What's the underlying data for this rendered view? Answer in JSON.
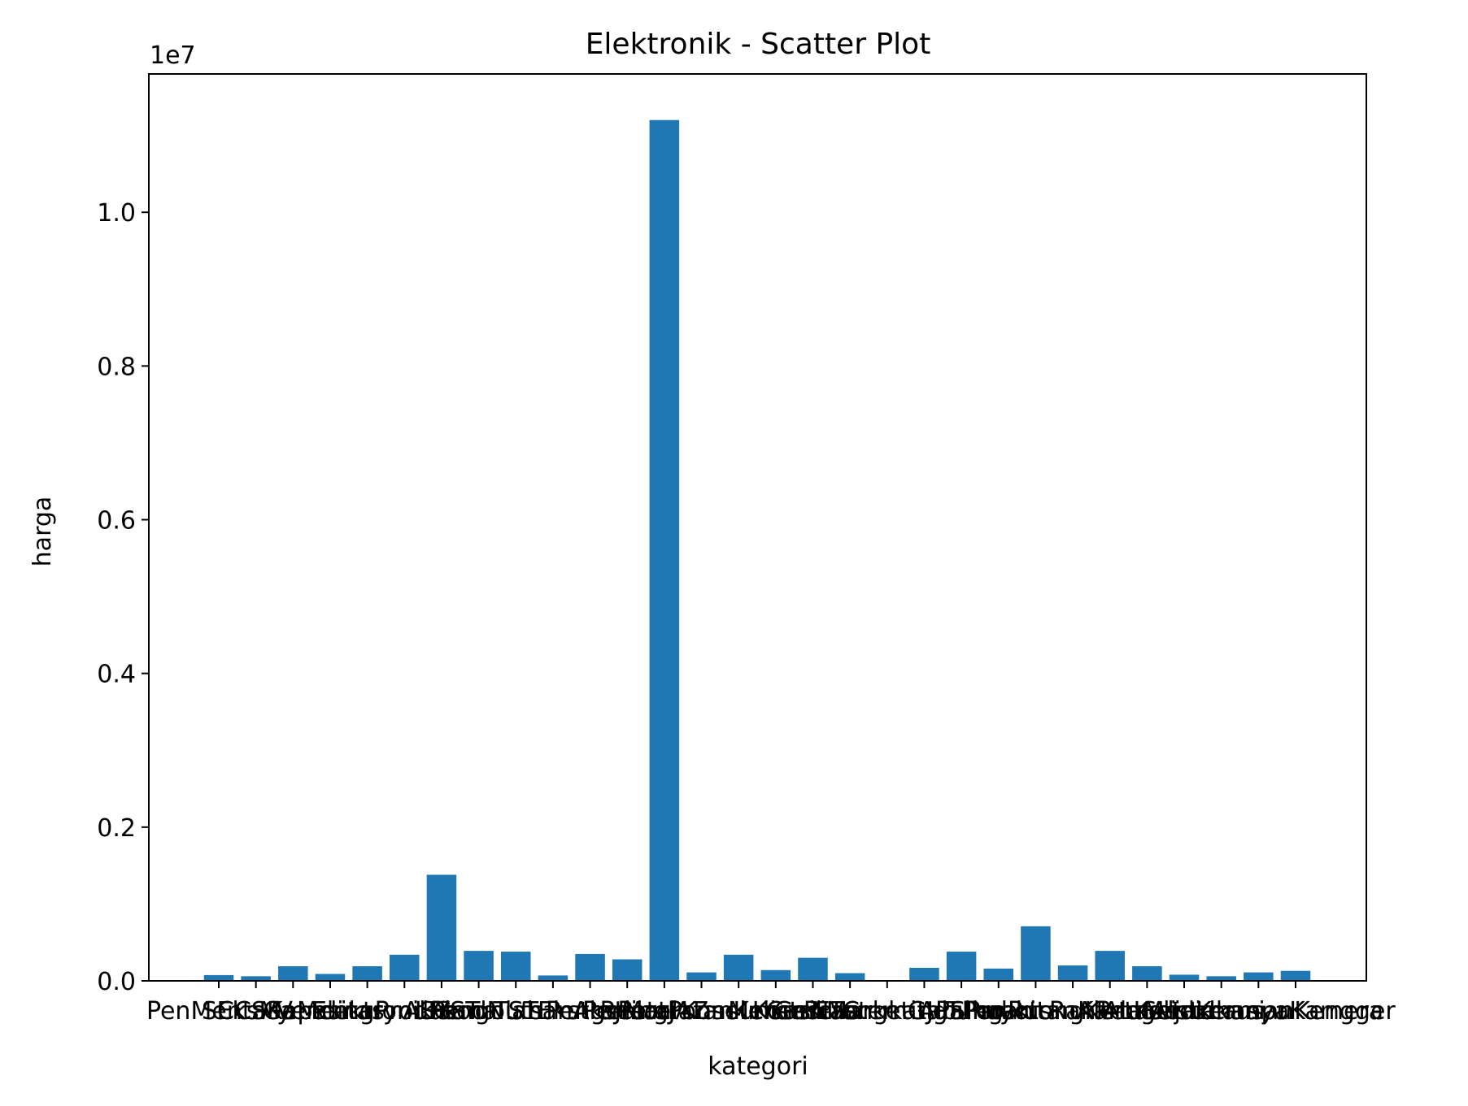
{
  "chart_data": {
    "type": "bar",
    "title": "Elektronik - Scatter Plot",
    "xlabel": "kategori",
    "ylabel": "harga",
    "y_scale_note": "1e7",
    "ylim": [
      0,
      11800000
    ],
    "yticks": [
      {
        "value": 0,
        "label": "0.0"
      },
      {
        "value": 2000000,
        "label": "0.2"
      },
      {
        "value": 4000000,
        "label": "0.4"
      },
      {
        "value": 6000000,
        "label": "0.6"
      },
      {
        "value": 8000000,
        "label": "0.8"
      },
      {
        "value": 10000000,
        "label": "1.0"
      }
    ],
    "grid": false,
    "color": "#1f77b4",
    "categories": [
      "",
      "",
      "",
      "",
      "",
      "",
      "",
      "",
      "",
      "",
      "",
      "",
      "",
      "",
      "",
      "",
      "",
      "",
      "",
      "",
      "",
      "",
      "",
      "",
      "",
      "",
      "",
      "",
      "",
      ""
    ],
    "values": [
      75000,
      60000,
      190000,
      90000,
      190000,
      340000,
      1380000,
      390000,
      380000,
      70000,
      350000,
      280000,
      11200000,
      110000,
      340000,
      140000,
      300000,
      100000,
      0,
      170000,
      380000,
      160000,
      710000,
      200000,
      390000,
      190000,
      80000,
      60000,
      110000,
      130000
    ],
    "x_tick_text_fragments": [
      "Pen",
      "Mentary",
      "Eks",
      "Ma",
      "SCCS",
      "Kapasitas",
      "Ge",
      "Mentary",
      "Vending",
      "Produk",
      "Elektronik",
      "Gana",
      "A",
      "SYST",
      "L",
      "FoodNuts",
      "TS",
      "T",
      "Pengolahan",
      "Aksesori",
      "Ekstra",
      "JM",
      "Pengering",
      "JAZ",
      "Peralat",
      "Ponsel",
      "Printer",
      "Konsumer",
      "Peralatan",
      "Kelistrikan",
      "Mer",
      "Gen",
      "Cas",
      "NTC",
      "Korasi",
      "Marketing",
      "Perangkat",
      "Jual",
      "Eastern",
      "Gabungan",
      "APS",
      "Pro",
      "Tukul",
      "Rus",
      "Perakitan",
      "Alt",
      "nyotong",
      "Kertas",
      "Ran",
      "Penge",
      "Kartu",
      "Media",
      "Ala",
      "Setrumasi",
      "Aljaz",
      "Lampu",
      "Kelistrikanya",
      "Kamera",
      "Kerusan",
      "Kengger",
      "Pelindung",
      "Gas",
      "Furnisasi",
      "Pelindungg",
      "Cuci",
      "Tinggi",
      "TV",
      "Kelfunasi",
      "A",
      "Pengaman",
      "Pedanyang",
      "Kesulurans",
      "Kesehatan",
      "Kelap",
      "Persatuan",
      "Lihat",
      "Nerangkah",
      "Kantor",
      "Rang"
    ]
  }
}
